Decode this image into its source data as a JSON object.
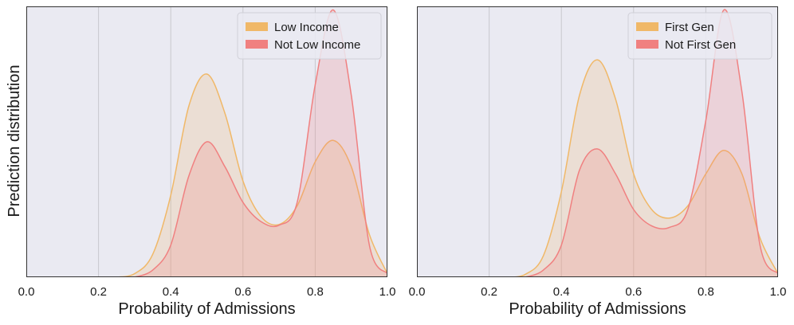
{
  "figure": {
    "ylabel": "Prediction distribution"
  },
  "chart_data": [
    {
      "type": "area",
      "title": "",
      "xlabel": "Probability of Admissions",
      "ylabel": "Prediction distribution",
      "xlim": [
        0.0,
        1.0
      ],
      "ylim": [
        0,
        3.8
      ],
      "x_ticks": [
        "0.0",
        "0.2",
        "0.4",
        "0.6",
        "0.8",
        "1.0"
      ],
      "grid": "vertical",
      "legend_position": "top-right",
      "series": [
        {
          "name": "Low Income",
          "color": "#F0B868",
          "x": [
            0.25,
            0.3,
            0.35,
            0.4,
            0.45,
            0.5,
            0.55,
            0.6,
            0.65,
            0.7,
            0.75,
            0.8,
            0.85,
            0.9,
            0.95,
            1.0
          ],
          "values": [
            0.0,
            0.05,
            0.32,
            1.15,
            2.4,
            2.85,
            2.3,
            1.35,
            0.85,
            0.74,
            1.0,
            1.62,
            1.92,
            1.55,
            0.6,
            0.05
          ]
        },
        {
          "name": "Not Low Income",
          "color": "#F08080",
          "x": [
            0.3,
            0.35,
            0.4,
            0.45,
            0.5,
            0.55,
            0.6,
            0.65,
            0.7,
            0.75,
            0.8,
            0.85,
            0.9,
            0.95,
            1.0
          ],
          "values": [
            0.0,
            0.1,
            0.45,
            1.42,
            1.9,
            1.55,
            1.05,
            0.78,
            0.73,
            1.05,
            2.7,
            3.75,
            2.55,
            0.45,
            0.05
          ]
        }
      ]
    },
    {
      "type": "area",
      "title": "",
      "xlabel": "Probability of Admissions",
      "ylabel": "",
      "xlim": [
        0.0,
        1.0
      ],
      "ylim": [
        0,
        3.8
      ],
      "x_ticks": [
        "0.0",
        "0.2",
        "0.4",
        "0.6",
        "0.8",
        "1.0"
      ],
      "grid": "vertical",
      "legend_position": "top-right",
      "series": [
        {
          "name": "First Gen",
          "color": "#F0B868",
          "x": [
            0.25,
            0.3,
            0.35,
            0.4,
            0.45,
            0.5,
            0.55,
            0.6,
            0.65,
            0.7,
            0.75,
            0.8,
            0.85,
            0.9,
            0.95,
            1.0
          ],
          "values": [
            0.0,
            0.04,
            0.3,
            1.2,
            2.55,
            3.05,
            2.5,
            1.45,
            0.95,
            0.83,
            1.0,
            1.45,
            1.78,
            1.45,
            0.55,
            0.05
          ]
        },
        {
          "name": "Not First Gen",
          "color": "#F08080",
          "x": [
            0.3,
            0.35,
            0.4,
            0.45,
            0.5,
            0.55,
            0.6,
            0.65,
            0.7,
            0.75,
            0.8,
            0.85,
            0.9,
            0.95,
            1.0
          ],
          "values": [
            0.0,
            0.1,
            0.45,
            1.5,
            1.8,
            1.45,
            0.95,
            0.72,
            0.7,
            0.95,
            2.2,
            3.75,
            2.6,
            0.45,
            0.05
          ]
        }
      ]
    }
  ]
}
